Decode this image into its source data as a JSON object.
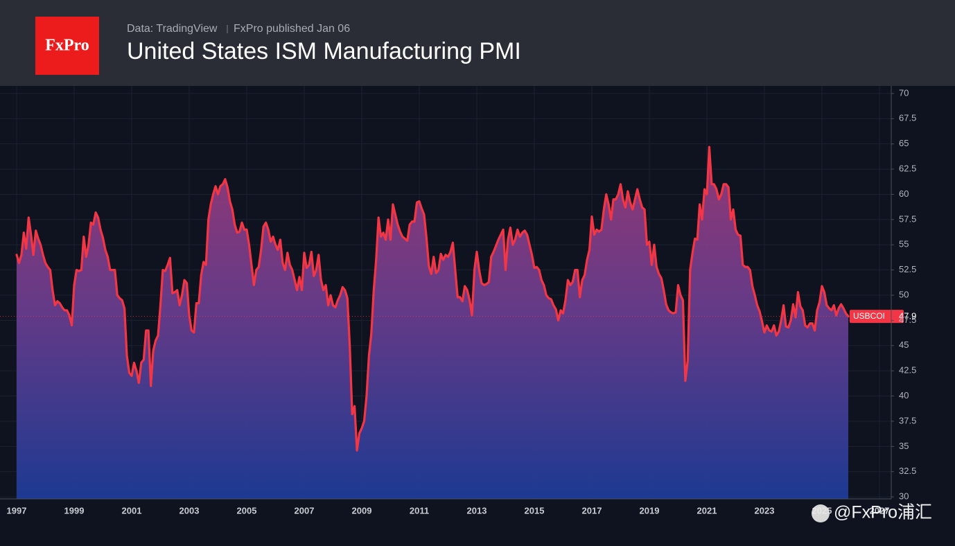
{
  "header": {
    "logo": "FxPro",
    "source": "Data: TradingView",
    "published": "FxPro published Jan 06"
  },
  "chart_data": {
    "type": "area",
    "title": "United States ISM Manufacturing PMI",
    "watermark": "@FxPro浦汇",
    "x": [
      1997,
      1997.083,
      1997.167,
      1997.25,
      1997.333,
      1997.417,
      1997.5,
      1997.583,
      1997.667,
      1997.75,
      1997.833,
      1997.917,
      1998,
      1998.083,
      1998.167,
      1998.25,
      1998.333,
      1998.417,
      1998.5,
      1998.583,
      1998.667,
      1998.75,
      1998.833,
      1998.917,
      1999,
      1999.083,
      1999.167,
      1999.25,
      1999.333,
      1999.417,
      1999.5,
      1999.583,
      1999.667,
      1999.75,
      1999.833,
      1999.917,
      2000,
      2000.083,
      2000.167,
      2000.25,
      2000.333,
      2000.417,
      2000.5,
      2000.583,
      2000.667,
      2000.75,
      2000.833,
      2000.917,
      2001,
      2001.083,
      2001.167,
      2001.25,
      2001.333,
      2001.417,
      2001.5,
      2001.583,
      2001.667,
      2001.75,
      2001.833,
      2001.917,
      2002,
      2002.083,
      2002.167,
      2002.25,
      2002.333,
      2002.417,
      2002.5,
      2002.583,
      2002.667,
      2002.75,
      2002.833,
      2002.917,
      2003,
      2003.083,
      2003.167,
      2003.25,
      2003.333,
      2003.417,
      2003.5,
      2003.583,
      2003.667,
      2003.75,
      2003.833,
      2003.917,
      2004,
      2004.083,
      2004.167,
      2004.25,
      2004.333,
      2004.417,
      2004.5,
      2004.583,
      2004.667,
      2004.75,
      2004.833,
      2004.917,
      2005,
      2005.083,
      2005.167,
      2005.25,
      2005.333,
      2005.417,
      2005.5,
      2005.583,
      2005.667,
      2005.75,
      2005.833,
      2005.917,
      2006,
      2006.083,
      2006.167,
      2006.25,
      2006.333,
      2006.417,
      2006.5,
      2006.583,
      2006.667,
      2006.75,
      2006.833,
      2006.917,
      2007,
      2007.083,
      2007.167,
      2007.25,
      2007.333,
      2007.417,
      2007.5,
      2007.583,
      2007.667,
      2007.75,
      2007.833,
      2007.917,
      2008,
      2008.083,
      2008.167,
      2008.25,
      2008.333,
      2008.417,
      2008.5,
      2008.583,
      2008.667,
      2008.75,
      2008.833,
      2008.917,
      2009,
      2009.083,
      2009.167,
      2009.25,
      2009.333,
      2009.417,
      2009.5,
      2009.583,
      2009.667,
      2009.75,
      2009.833,
      2009.917,
      2010,
      2010.083,
      2010.167,
      2010.25,
      2010.333,
      2010.417,
      2010.5,
      2010.583,
      2010.667,
      2010.75,
      2010.833,
      2010.917,
      2011,
      2011.083,
      2011.167,
      2011.25,
      2011.333,
      2011.417,
      2011.5,
      2011.583,
      2011.667,
      2011.75,
      2011.833,
      2011.917,
      2012,
      2012.083,
      2012.167,
      2012.25,
      2012.333,
      2012.417,
      2012.5,
      2012.583,
      2012.667,
      2012.75,
      2012.833,
      2012.917,
      2013,
      2013.083,
      2013.167,
      2013.25,
      2013.333,
      2013.417,
      2013.5,
      2013.583,
      2013.667,
      2013.75,
      2013.833,
      2013.917,
      2014,
      2014.083,
      2014.167,
      2014.25,
      2014.333,
      2014.417,
      2014.5,
      2014.583,
      2014.667,
      2014.75,
      2014.833,
      2014.917,
      2015,
      2015.083,
      2015.167,
      2015.25,
      2015.333,
      2015.417,
      2015.5,
      2015.583,
      2015.667,
      2015.75,
      2015.833,
      2015.917,
      2016,
      2016.083,
      2016.167,
      2016.25,
      2016.333,
      2016.417,
      2016.5,
      2016.583,
      2016.667,
      2016.75,
      2016.833,
      2016.917,
      2017,
      2017.083,
      2017.167,
      2017.25,
      2017.333,
      2017.417,
      2017.5,
      2017.583,
      2017.667,
      2017.75,
      2017.833,
      2017.917,
      2018,
      2018.083,
      2018.167,
      2018.25,
      2018.333,
      2018.417,
      2018.5,
      2018.583,
      2018.667,
      2018.75,
      2018.833,
      2018.917,
      2019,
      2019.083,
      2019.167,
      2019.25,
      2019.333,
      2019.417,
      2019.5,
      2019.583,
      2019.667,
      2019.75,
      2019.833,
      2019.917,
      2020,
      2020.083,
      2020.167,
      2020.25,
      2020.333,
      2020.417,
      2020.5,
      2020.583,
      2020.667,
      2020.75,
      2020.833,
      2020.917,
      2021,
      2021.083,
      2021.167,
      2021.25,
      2021.333,
      2021.417,
      2021.5,
      2021.583,
      2021.667,
      2021.75,
      2021.833,
      2021.917,
      2022,
      2022.083,
      2022.167,
      2022.25,
      2022.333,
      2022.417,
      2022.5,
      2022.583,
      2022.667,
      2022.75,
      2022.833,
      2022.917,
      2023,
      2023.083,
      2023.167,
      2023.25,
      2023.333,
      2023.417,
      2023.5,
      2023.583,
      2023.667,
      2023.75,
      2023.833,
      2023.917,
      2024,
      2024.083,
      2024.167,
      2024.25,
      2024.333,
      2024.417,
      2024.5,
      2024.583,
      2024.667,
      2024.75,
      2024.833,
      2024.917,
      2025,
      2025.083,
      2025.167,
      2025.25,
      2025.333,
      2025.417,
      2025.5,
      2025.583,
      2025.667,
      2025.75,
      2025.833,
      2025.917
    ],
    "series": [
      {
        "name": "USBCOI",
        "color": "#f23645",
        "values": [
          54.0,
          53.2,
          54.0,
          56.2,
          54.6,
          57.7,
          56.0,
          54.0,
          56.4,
          55.6,
          55.0,
          54.0,
          53.2,
          52.8,
          52.5,
          50.5,
          49.0,
          49.4,
          49.2,
          48.8,
          48.5,
          48.5,
          48.0,
          47.0,
          51.0,
          52.5,
          52.4,
          52.5,
          55.8,
          53.8,
          55.0,
          57.2,
          57.0,
          58.2,
          57.7,
          56.5,
          55.7,
          54.5,
          53.8,
          52.5,
          52.5,
          52.5,
          50.0,
          49.7,
          49.5,
          48.7,
          44.0,
          42.3,
          42.0,
          43.3,
          42.5,
          41.3,
          43.3,
          43.6,
          46.5,
          46.5,
          41.0,
          44.5,
          45.5,
          46.0,
          49.0,
          52.5,
          52.4,
          53.0,
          53.7,
          50.2,
          50.3,
          50.5,
          49.0,
          50.0,
          51.5,
          51.2,
          48.0,
          46.5,
          46.3,
          49.2,
          49.2,
          52.0,
          53.3,
          53.0,
          57.5,
          59.0,
          60.0,
          60.8,
          60.0,
          60.8,
          61.0,
          61.5,
          60.7,
          59.3,
          58.5,
          57.0,
          56.2,
          56.3,
          57.2,
          56.5,
          56.5,
          55.0,
          53.0,
          51.0,
          52.5,
          52.8,
          54.5,
          56.8,
          57.2,
          56.5,
          55.3,
          55.8,
          55.0,
          54.5,
          55.5,
          53.2,
          52.5,
          54.2,
          53.0,
          52.5,
          51.5,
          50.5,
          51.8,
          50.5,
          54.2,
          52.7,
          53.0,
          54.3,
          51.9,
          52.5,
          54.0,
          51.5,
          50.5,
          51.0,
          49.0,
          50.0,
          49.0,
          48.8,
          49.5,
          50.0,
          50.8,
          50.5,
          49.7,
          45.0,
          38.2,
          39.0,
          34.6,
          36.3,
          36.8,
          37.5,
          40.0,
          44.0,
          46.2,
          50.5,
          53.5,
          57.7,
          55.8,
          56.2,
          55.5,
          57.5,
          55.5,
          59.0,
          58.0,
          57.0,
          56.3,
          55.8,
          55.6,
          55.4,
          57.0,
          57.3,
          57.3,
          59.2,
          59.3,
          58.6,
          58.0,
          55.7,
          52.9,
          52.1,
          53.8,
          52.2,
          52.5,
          54.1,
          53.5,
          54.0,
          53.8,
          54.3,
          55.2,
          52.5,
          49.8,
          49.8,
          49.4,
          50.9,
          50.5,
          49.5,
          48.0,
          52.5,
          54.3,
          52.5,
          51.2,
          51.0,
          51.1,
          51.3,
          53.8,
          54.3,
          54.9,
          55.5,
          56.0,
          56.5,
          52.5,
          55.5,
          56.7,
          55.0,
          55.5,
          56.5,
          55.8,
          56.2,
          56.4,
          56.0,
          55.0,
          54.0,
          52.7,
          52.8,
          52.5,
          51.5,
          51.0,
          50.0,
          49.7,
          49.6,
          49.0,
          48.6,
          47.5,
          48.5,
          48.2,
          49.5,
          51.5,
          51.0,
          51.3,
          52.5,
          52.5,
          49.8,
          51.5,
          52.0,
          53.5,
          54.5,
          57.8,
          56.0,
          56.5,
          56.3,
          56.5,
          58.5,
          60.0,
          59.0,
          57.5,
          59.5,
          59.5,
          60.0,
          61.0,
          59.5,
          58.7,
          60.3,
          59.2,
          58.5,
          59.5,
          60.5,
          59.5,
          58.7,
          58.5,
          55.0,
          55.3,
          53.0,
          55.0,
          52.8,
          52.1,
          51.7,
          50.5,
          49.1,
          48.5,
          48.3,
          48.2,
          48.3,
          51.0,
          50.0,
          49.5,
          41.5,
          43.5,
          52.5,
          54.2,
          55.6,
          55.5,
          59.0,
          57.5,
          60.5,
          60.0,
          64.7,
          61.0,
          61.0,
          60.5,
          59.5,
          60.0,
          61.0,
          61.0,
          60.7,
          57.5,
          58.5,
          56.5,
          56.0,
          55.9,
          53.0,
          52.8,
          52.8,
          52.5,
          50.9,
          50.0,
          49.0,
          48.4,
          47.4,
          46.3,
          47.0,
          46.5,
          46.4,
          47.0,
          46.0,
          46.4,
          47.5,
          49.0,
          46.9,
          46.8,
          47.5,
          49.1,
          47.8,
          50.3,
          48.9,
          48.5,
          47.0,
          46.8,
          47.2,
          47.2,
          46.5,
          48.5,
          49.3,
          50.9,
          50.3,
          49.0,
          48.7,
          48.5,
          49.0,
          48.0,
          48.7,
          49.1,
          48.7,
          48.2,
          47.9
        ]
      }
    ],
    "xlim": [
      1997,
      2027.41
    ],
    "xticks": [
      1997,
      1999,
      2001,
      2003,
      2005,
      2007,
      2009,
      2011,
      2013,
      2015,
      2017,
      2019,
      2021,
      2023,
      2025,
      2027
    ],
    "ylim": [
      29.8,
      70.75
    ],
    "yticks": [
      30,
      32.5,
      35,
      37.5,
      40,
      42.5,
      45,
      47.5,
      50,
      52.5,
      55,
      57.5,
      60,
      62.5,
      65,
      67.5,
      70
    ],
    "grid": true
  }
}
